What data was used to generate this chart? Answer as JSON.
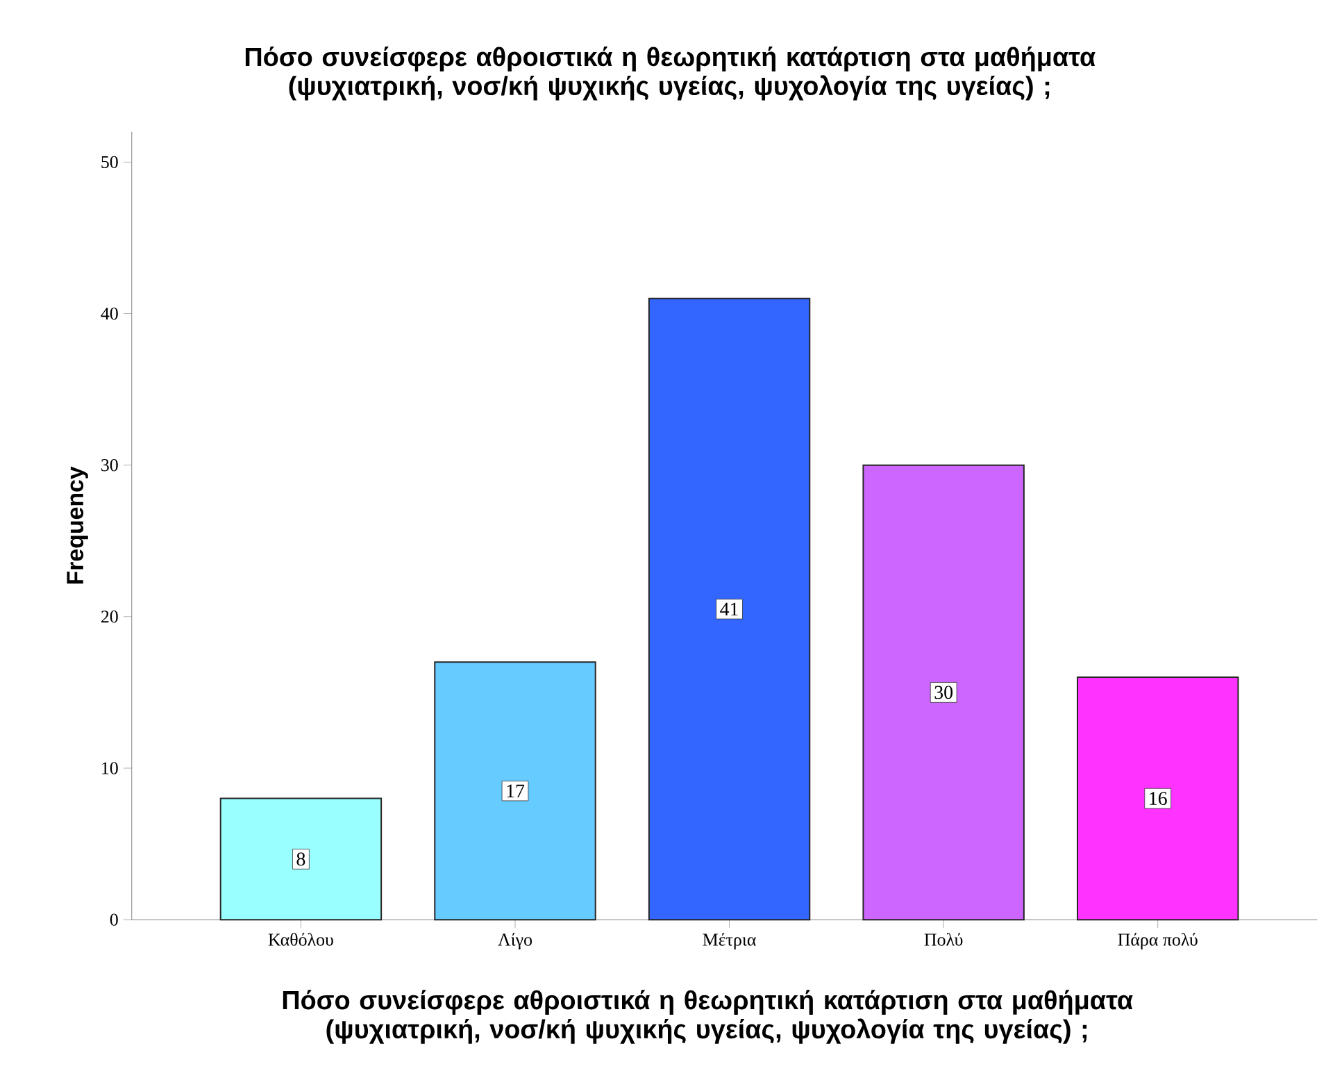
{
  "chart_data": {
    "type": "bar",
    "title": "Πόσο συνείσφερε αθροιστικά η θεωρητική κατάρτιση στα μαθήματα (ψυχιατρική, νοσ/κή ψυχικής υγείας, ψυχολογία της υγείας) ;",
    "xlabel": "Πόσο συνείσφερε αθροιστικά η θεωρητική κατάρτιση στα μαθήματα (ψυχιατρική, νοσ/κή ψυχικής υγείας, ψυχολογία της υγείας) ;",
    "ylabel": "Frequency",
    "categories": [
      "Καθόλου",
      "Λίγο",
      "Μέτρια",
      "Πολύ",
      "Πάρα πολύ"
    ],
    "values": [
      8,
      17,
      41,
      30,
      16
    ],
    "colors": [
      "#99ffff",
      "#66ccff",
      "#3366ff",
      "#cc66ff",
      "#ff33ff"
    ],
    "ylim": [
      0,
      52
    ],
    "yticks": [
      0,
      10,
      20,
      30,
      40,
      50
    ],
    "data_labels": true,
    "grid": false
  }
}
